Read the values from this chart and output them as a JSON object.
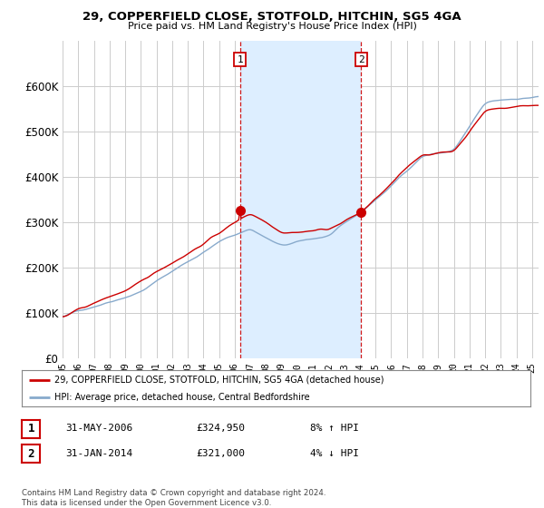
{
  "title": "29, COPPERFIELD CLOSE, STOTFOLD, HITCHIN, SG5 4GA",
  "subtitle": "Price paid vs. HM Land Registry's House Price Index (HPI)",
  "bg_color": "#ffffff",
  "plot_bg_color": "#ffffff",
  "grid_color": "#cccccc",
  "highlight_color": "#ddeeff",
  "red_line_color": "#cc0000",
  "blue_line_color": "#88aacc",
  "dashed_line_color": "#cc0000",
  "legend_label_red": "29, COPPERFIELD CLOSE, STOTFOLD, HITCHIN, SG5 4GA (detached house)",
  "legend_label_blue": "HPI: Average price, detached house, Central Bedfordshire",
  "table_rows": [
    {
      "num": "1",
      "date": "31-MAY-2006",
      "price": "£324,950",
      "hpi": "8% ↑ HPI"
    },
    {
      "num": "2",
      "date": "31-JAN-2014",
      "price": "£321,000",
      "hpi": "4% ↓ HPI"
    }
  ],
  "footer": "Contains HM Land Registry data © Crown copyright and database right 2024.\nThis data is licensed under the Open Government Licence v3.0.",
  "ylim": [
    0,
    700000
  ],
  "yticks": [
    0,
    100000,
    200000,
    300000,
    400000,
    500000,
    600000
  ],
  "sale1_month_idx": 136,
  "sale1_price": 324950,
  "sale2_month_idx": 229,
  "sale2_price": 321000,
  "start_year": 1995,
  "start_month": 1
}
